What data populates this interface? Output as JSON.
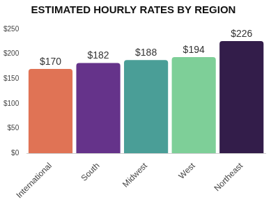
{
  "chart_data": {
    "type": "bar",
    "title": "ESTIMATED HOURLY RATES BY REGION",
    "categories": [
      "International",
      "South",
      "Midwest",
      "West",
      "Northeast"
    ],
    "values": [
      170,
      182,
      188,
      194,
      226
    ],
    "value_labels": [
      "$170",
      "$182",
      "$188",
      "$194",
      "$226"
    ],
    "colors": [
      "#e07355",
      "#65338a",
      "#4a9e97",
      "#7ecf98",
      "#331d4a"
    ],
    "ylim": [
      0,
      250
    ],
    "yticks": [
      {
        "value": 0,
        "label": "$0"
      },
      {
        "value": 50,
        "label": "$50"
      },
      {
        "value": 100,
        "label": "$100"
      },
      {
        "value": 150,
        "label": "$150"
      },
      {
        "value": 200,
        "label": "$200"
      },
      {
        "value": 250,
        "label": "$250"
      }
    ],
    "grid": false,
    "data_labels": true
  }
}
